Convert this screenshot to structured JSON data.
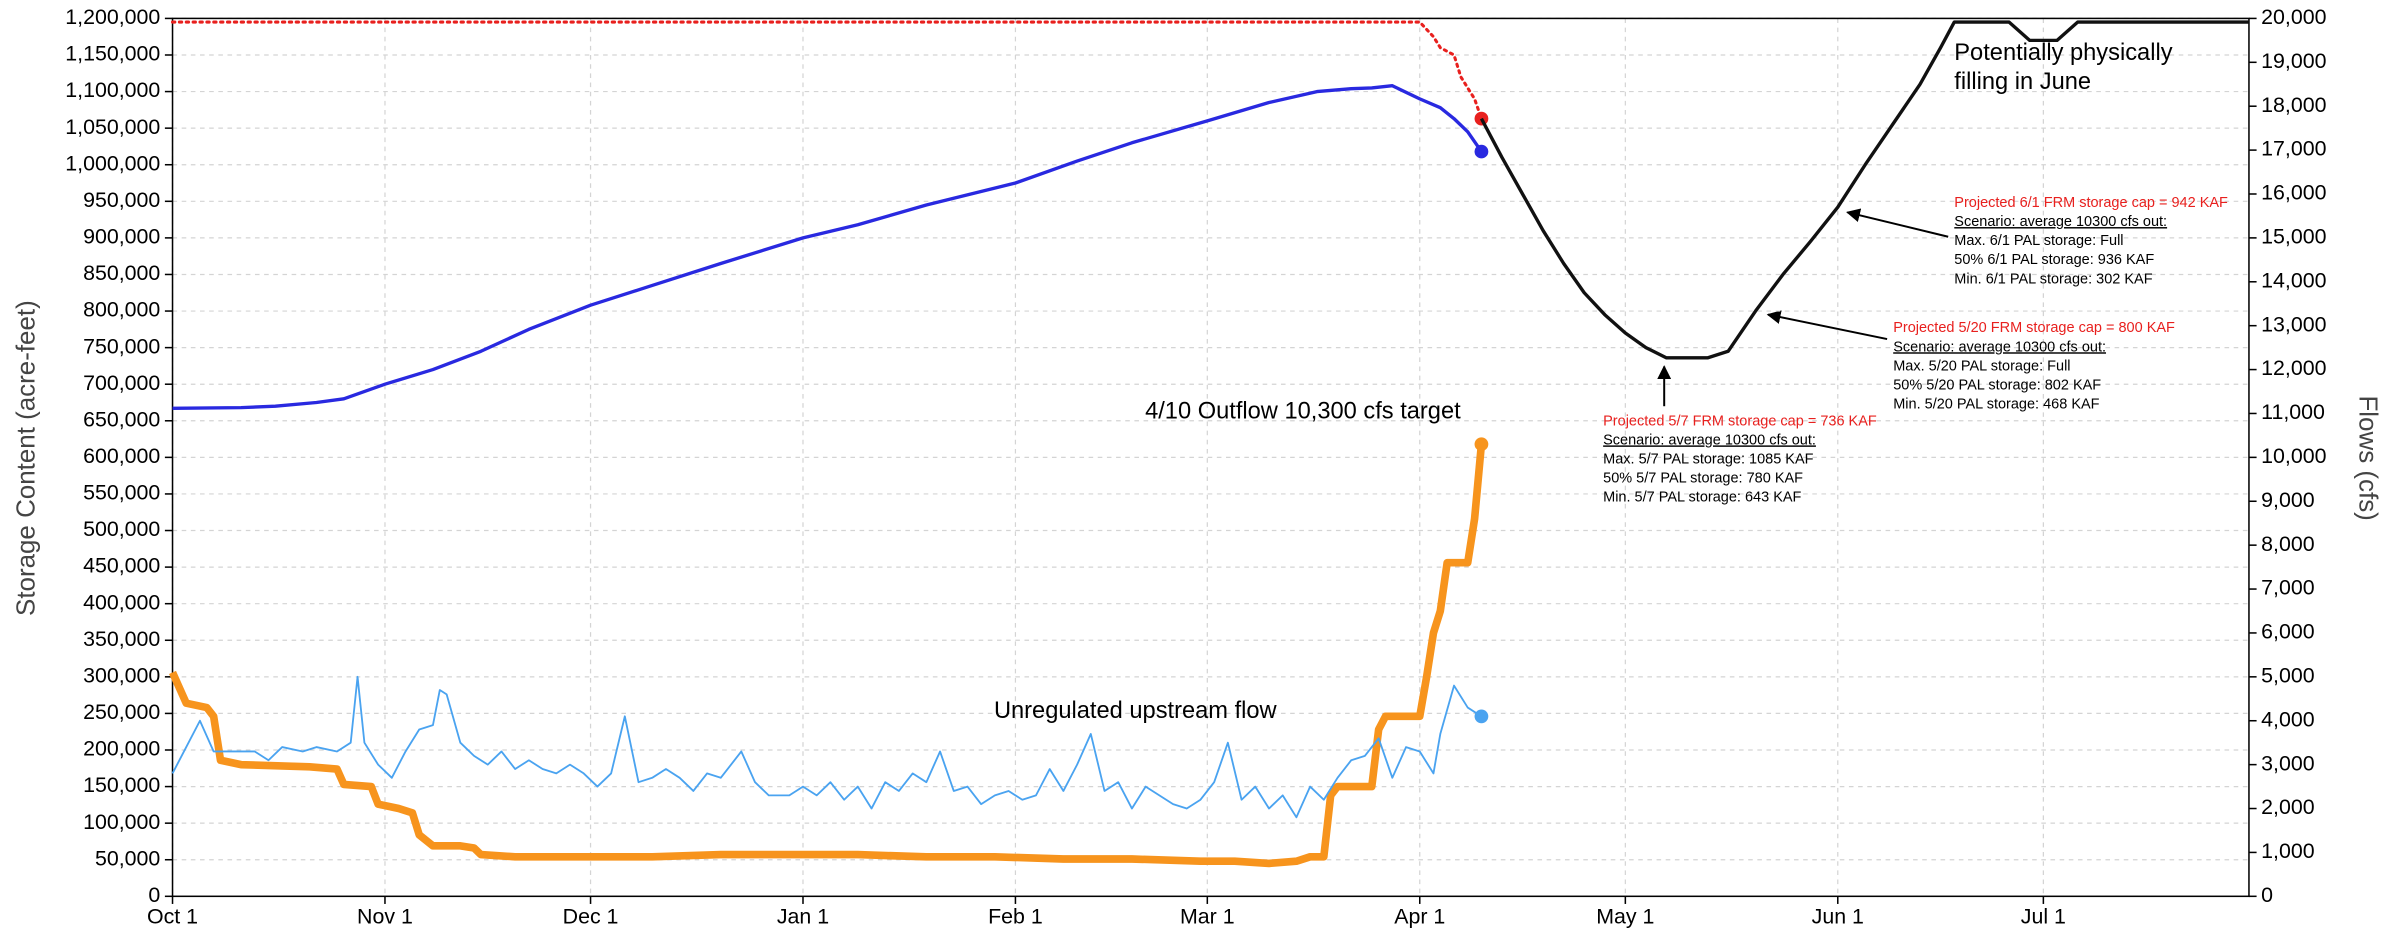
{
  "chart_data": {
    "type": "line",
    "y_label": "Storage Content (acre-feet)",
    "y2_label": "Flows (cfs)",
    "grid": true,
    "xlim": [
      0,
      303
    ],
    "xticks": [
      {
        "value": 0,
        "label": "Oct 1"
      },
      {
        "value": 31,
        "label": "Nov 1"
      },
      {
        "value": 61,
        "label": "Dec 1"
      },
      {
        "value": 92,
        "label": "Jan 1"
      },
      {
        "value": 123,
        "label": "Feb 1"
      },
      {
        "value": 151,
        "label": "Mar 1"
      },
      {
        "value": 182,
        "label": "Apr 1"
      },
      {
        "value": 212,
        "label": "May 1"
      },
      {
        "value": 243,
        "label": "Jun 1"
      },
      {
        "value": 273,
        "label": "Jul 1"
      }
    ],
    "ylim": [
      0,
      1200000
    ],
    "yticks": [
      0,
      {
        "value": 50000,
        "label": "50,000"
      },
      {
        "value": 100000,
        "label": "100,000"
      },
      {
        "value": 150000,
        "label": "150,000"
      },
      {
        "value": 200000,
        "label": "200,000"
      },
      {
        "value": 250000,
        "label": "250,000"
      },
      {
        "value": 300000,
        "label": "300,000"
      },
      {
        "value": 350000,
        "label": "350,000"
      },
      {
        "value": 400000,
        "label": "400,000"
      },
      {
        "value": 450000,
        "label": "450,000"
      },
      {
        "value": 500000,
        "label": "500,000"
      },
      {
        "value": 550000,
        "label": "550,000"
      },
      {
        "value": 600000,
        "label": "600,000"
      },
      {
        "value": 650000,
        "label": "650,000"
      },
      {
        "value": 700000,
        "label": "700,000"
      },
      {
        "value": 750000,
        "label": "750,000"
      },
      {
        "value": 800000,
        "label": "800,000"
      },
      {
        "value": 850000,
        "label": "850,000"
      },
      {
        "value": 900000,
        "label": "900,000"
      },
      {
        "value": 950000,
        "label": "950,000"
      },
      {
        "value": 1000000,
        "label": "1,000,000"
      },
      {
        "value": 1050000,
        "label": "1,050,000"
      },
      {
        "value": 1100000,
        "label": "1,100,000"
      },
      {
        "value": 1150000,
        "label": "1,150,000"
      },
      {
        "value": 1200000,
        "label": "1,200,000"
      }
    ],
    "y2lim": [
      0,
      20000
    ],
    "y2ticks": [
      0,
      {
        "value": 1000,
        "label": "1,000"
      },
      {
        "value": 2000,
        "label": "2,000"
      },
      {
        "value": 3000,
        "label": "3,000"
      },
      {
        "value": 4000,
        "label": "4,000"
      },
      {
        "value": 5000,
        "label": "5,000"
      },
      {
        "value": 6000,
        "label": "6,000"
      },
      {
        "value": 7000,
        "label": "7,000"
      },
      {
        "value": 8000,
        "label": "8,000"
      },
      {
        "value": 9000,
        "label": "9,000"
      },
      {
        "value": 10000,
        "label": "10,000"
      },
      {
        "value": 11000,
        "label": "11,000"
      },
      {
        "value": 12000,
        "label": "12,000"
      },
      {
        "value": 13000,
        "label": "13,000"
      },
      {
        "value": 14000,
        "label": "14,000"
      },
      {
        "value": 15000,
        "label": "15,000"
      },
      {
        "value": 16000,
        "label": "16,000"
      },
      {
        "value": 17000,
        "label": "17,000"
      },
      {
        "value": 18000,
        "label": "18,000"
      },
      {
        "value": 19000,
        "label": "19,000"
      },
      {
        "value": 20000,
        "label": "20,000"
      }
    ],
    "series": [
      {
        "color": "#e8201e",
        "axis": "y",
        "dash": "dotted",
        "width": 2,
        "end_marker": true,
        "x": [
          0,
          182,
          184,
          185,
          187,
          188,
          190,
          191
        ],
        "values": [
          1195000,
          1195000,
          1175000,
          1160000,
          1150000,
          1120000,
          1090000,
          1063000
        ]
      },
      {
        "color": "#2929e0",
        "axis": "y",
        "width": 2.2,
        "end_marker": true,
        "x": [
          0,
          10,
          15,
          21,
          25,
          31,
          38,
          45,
          52,
          61,
          70,
          80,
          92,
          100,
          110,
          123,
          132,
          140,
          151,
          160,
          167,
          172,
          175,
          178,
          182,
          185,
          187,
          189,
          191
        ],
        "values": [
          667000,
          668000,
          670000,
          675000,
          680000,
          700000,
          720000,
          745000,
          775000,
          808000,
          835000,
          865000,
          900000,
          918000,
          945000,
          975000,
          1005000,
          1030000,
          1060000,
          1085000,
          1100000,
          1104000,
          1105000,
          1108000,
          1090000,
          1078000,
          1063000,
          1045000,
          1018000
        ]
      },
      {
        "color": "#111111",
        "axis": "y",
        "width": 2.2,
        "x": [
          191,
          194,
          197,
          200,
          203,
          206,
          209,
          212,
          215,
          218,
          224,
          227,
          231,
          235,
          239,
          243,
          247,
          251,
          255,
          258,
          260,
          268,
          271,
          275,
          278,
          303
        ],
        "values": [
          1063000,
          1010000,
          960000,
          910000,
          865000,
          825000,
          795000,
          770000,
          750000,
          736000,
          736000,
          745000,
          800000,
          850000,
          895000,
          942000,
          1000000,
          1055000,
          1110000,
          1160000,
          1195000,
          1195000,
          1170000,
          1170000,
          1195000,
          1195000
        ]
      },
      {
        "color": "#f7941d",
        "axis": "y2",
        "width": 5,
        "end_marker": true,
        "x": [
          0,
          2,
          5,
          6,
          7,
          10,
          20,
          24,
          25,
          29,
          30,
          33,
          35,
          36,
          38,
          42,
          44,
          45,
          50,
          60,
          70,
          80,
          90,
          100,
          110,
          120,
          130,
          140,
          150,
          155,
          160,
          164,
          166,
          168,
          169,
          170,
          175,
          176,
          177,
          182,
          183,
          184,
          185,
          186,
          189,
          190,
          191
        ],
        "values": [
          5100,
          4400,
          4300,
          4100,
          3100,
          3000,
          2950,
          2900,
          2550,
          2500,
          2100,
          2000,
          1900,
          1400,
          1150,
          1150,
          1100,
          950,
          900,
          900,
          900,
          950,
          950,
          950,
          900,
          900,
          850,
          850,
          800,
          800,
          750,
          800,
          900,
          900,
          2300,
          2500,
          2500,
          3800,
          4100,
          4100,
          5000,
          6000,
          6500,
          7600,
          7600,
          8600,
          10300
        ]
      },
      {
        "color": "#4aa3f0",
        "axis": "y2",
        "width": 1.2,
        "end_marker": true,
        "x": [
          0,
          2,
          4,
          6,
          9,
          12,
          14,
          16,
          19,
          21,
          24,
          26,
          27,
          28,
          30,
          32,
          34,
          36,
          38,
          39,
          40,
          42,
          44,
          46,
          48,
          50,
          52,
          54,
          56,
          58,
          60,
          62,
          64,
          66,
          68,
          70,
          72,
          74,
          76,
          78,
          80,
          83,
          85,
          87,
          90,
          92,
          94,
          96,
          98,
          100,
          102,
          104,
          106,
          108,
          110,
          112,
          114,
          116,
          118,
          120,
          122,
          124,
          126,
          128,
          130,
          132,
          134,
          136,
          138,
          140,
          142,
          144,
          146,
          148,
          150,
          152,
          154,
          156,
          158,
          160,
          162,
          164,
          166,
          168,
          170,
          172,
          174,
          176,
          178,
          180,
          182,
          184,
          185,
          187,
          189,
          191
        ],
        "values": [
          2800,
          3400,
          4000,
          3300,
          3300,
          3300,
          3100,
          3400,
          3300,
          3400,
          3300,
          3500,
          5000,
          3500,
          3000,
          2700,
          3300,
          3800,
          3900,
          4700,
          4600,
          3500,
          3200,
          3000,
          3300,
          2900,
          3100,
          2900,
          2800,
          3000,
          2800,
          2500,
          2800,
          4100,
          2600,
          2700,
          2900,
          2700,
          2400,
          2800,
          2700,
          3300,
          2600,
          2300,
          2300,
          2500,
          2300,
          2600,
          2200,
          2500,
          2000,
          2600,
          2400,
          2800,
          2600,
          3300,
          2400,
          2500,
          2100,
          2300,
          2400,
          2200,
          2300,
          2900,
          2400,
          3000,
          3700,
          2400,
          2600,
          2000,
          2500,
          2300,
          2100,
          2000,
          2200,
          2600,
          3500,
          2200,
          2500,
          2000,
          2300,
          1800,
          2500,
          2200,
          2700,
          3100,
          3200,
          3600,
          2700,
          3400,
          3300,
          2800,
          3700,
          4800,
          4300,
          4100
        ]
      }
    ],
    "annotations": [
      {
        "lines": [
          "4/10 Outflow 10,300 cfs target"
        ]
      },
      {
        "lines": [
          "Unregulated upstream flow"
        ]
      },
      {
        "lines": [
          "Potentially physically",
          "filling in June"
        ]
      }
    ],
    "notes": [
      {
        "title": "Projected 5/7 FRM storage cap = 736 KAF",
        "lines": [
          "Scenario: average 10300 cfs out:",
          "Max. 5/7 PAL storage: 1085 KAF",
          "50% 5/7 PAL storage: 780 KAF",
          "Min. 5/7 PAL storage: 643 KAF"
        ]
      },
      {
        "title": "Projected 5/20 FRM storage cap = 800 KAF",
        "lines": [
          "Scenario: average 10300 cfs out:",
          "Max. 5/20 PAL storage: Full",
          "50% 5/20 PAL storage:  802 KAF",
          "Min. 5/20 PAL storage: 468 KAF"
        ]
      },
      {
        "title": "Projected 6/1 FRM storage cap = 942 KAF",
        "lines": [
          "Scenario: average 10300 cfs out:",
          "Max. 6/1 PAL storage: Full",
          "50% 6/1 PAL storage: 936 KAF",
          "Min. 6/1 PAL storage: 302 KAF"
        ]
      }
    ]
  }
}
